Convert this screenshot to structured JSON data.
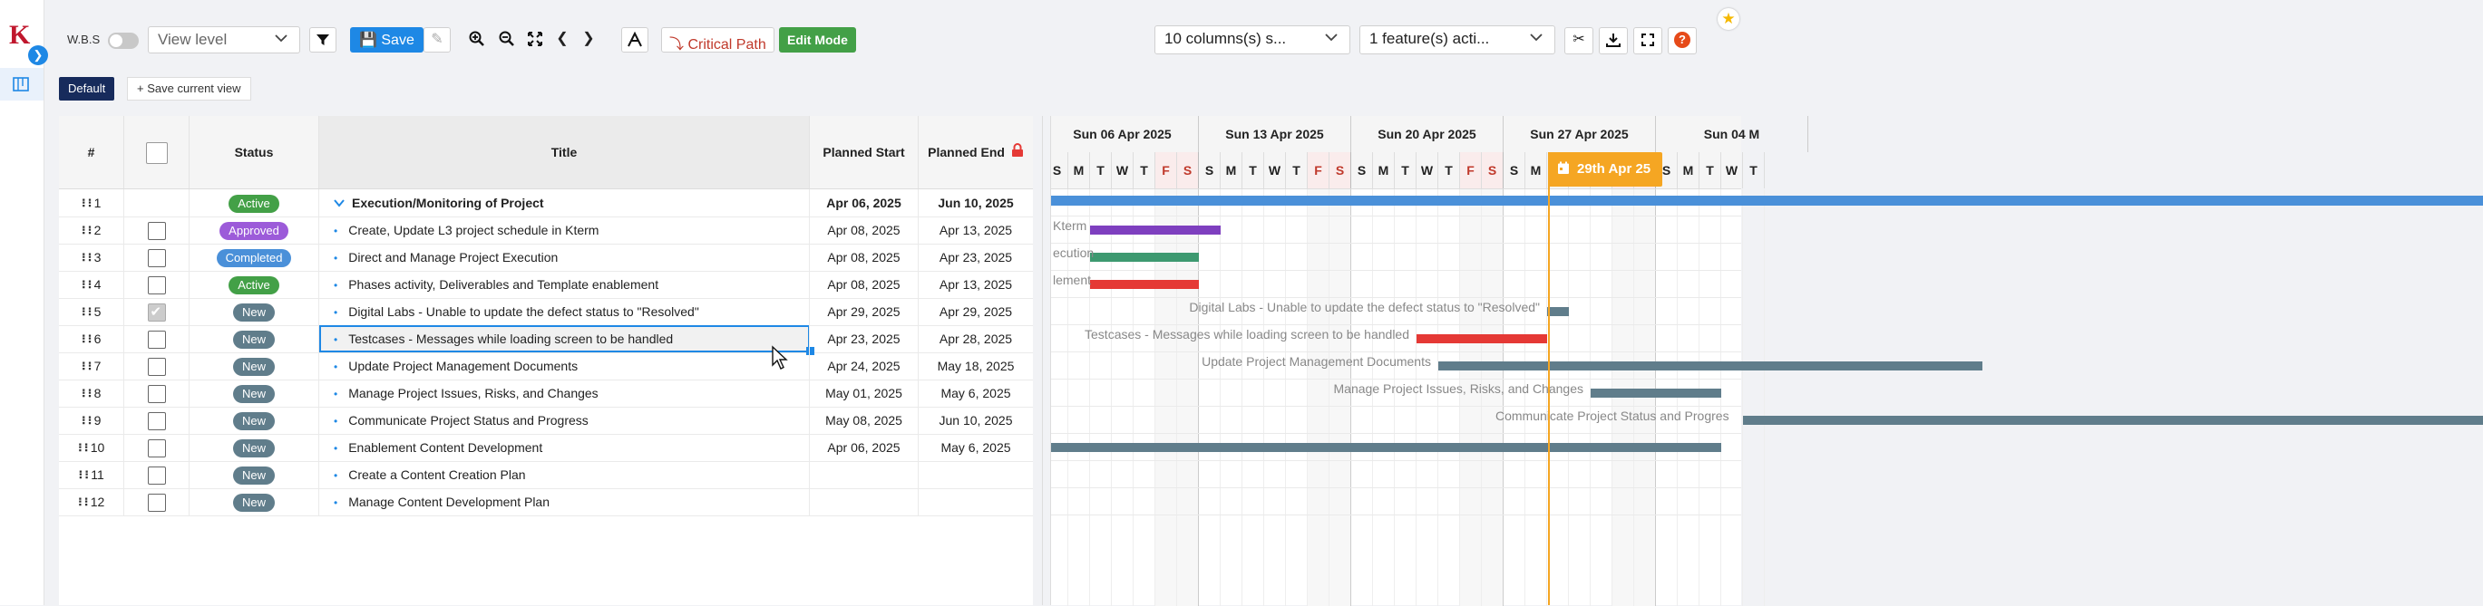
{
  "toolbar": {
    "wbs_label": "W.B.S",
    "view_level": "View level",
    "save_label": "Save",
    "critical_path_label": "Critical Path",
    "edit_mode_label": "Edit Mode",
    "columns_select": "10 columns(s) s...",
    "features_select": "1 feature(s) acti..."
  },
  "views": {
    "default_label": "Default",
    "save_current_label": "Save current view"
  },
  "columns": {
    "num": "#",
    "status": "Status",
    "title": "Title",
    "start": "Planned Start",
    "end": "Planned End"
  },
  "rows": [
    {
      "num": "1",
      "status": "Active",
      "title": "Execution/Monitoring of Project",
      "start": "Apr 06, 2025",
      "end": "Jun 10, 2025"
    },
    {
      "num": "2",
      "status": "Approved",
      "title": "Create, Update L3 project schedule in Kterm",
      "start": "Apr 08, 2025",
      "end": "Apr 13, 2025"
    },
    {
      "num": "3",
      "status": "Completed",
      "title": "Direct and Manage Project Execution",
      "start": "Apr 08, 2025",
      "end": "Apr 23, 2025"
    },
    {
      "num": "4",
      "status": "Active",
      "title": "Phases activity, Deliverables and Template enablement",
      "start": "Apr 08, 2025",
      "end": "Apr 13, 2025"
    },
    {
      "num": "5",
      "status": "New",
      "title": "Digital Labs - Unable to update the defect status to \"Resolved\"",
      "start": "Apr 29, 2025",
      "end": "Apr 29, 2025"
    },
    {
      "num": "6",
      "status": "New",
      "title": "Testcases - Messages while loading screen to be handled",
      "start": "Apr 23, 2025",
      "end": "Apr 28, 2025"
    },
    {
      "num": "7",
      "status": "New",
      "title": "Update Project Management Documents",
      "start": "Apr 24, 2025",
      "end": "May 18, 2025"
    },
    {
      "num": "8",
      "status": "New",
      "title": "Manage Project Issues, Risks, and Changes",
      "start": "May 01, 2025",
      "end": "May 6, 2025"
    },
    {
      "num": "9",
      "status": "New",
      "title": "Communicate Project Status and Progress",
      "start": "May 08, 2025",
      "end": "Jun 10, 2025"
    },
    {
      "num": "10",
      "status": "New",
      "title": "Enablement Content Development",
      "start": "Apr 06, 2025",
      "end": "May 6, 2025"
    },
    {
      "num": "11",
      "status": "New",
      "title": "Create a Content Creation Plan",
      "start": "",
      "end": ""
    },
    {
      "num": "12",
      "status": "New",
      "title": "Manage Content Development Plan",
      "start": "",
      "end": ""
    }
  ],
  "status_colors": {
    "Active": "#43a047",
    "Approved": "#9c5bd9",
    "Completed": "#4a90d9",
    "New": "#607d8b"
  },
  "gantt": {
    "weeks": [
      "Sun 06 Apr 2025",
      "Sun 13 Apr 2025",
      "Sun 20 Apr 2025",
      "Sun 27 Apr 2025",
      "Sun 04 M"
    ],
    "day_letters": [
      "S",
      "M",
      "T",
      "W",
      "T",
      "F",
      "S"
    ],
    "today_label": "29th Apr 25",
    "labels": {
      "r2": "Kterm",
      "r3": "ecution",
      "r4": "lement",
      "r5": "Digital Labs - Unable to update the defect status to \"Resolved\"",
      "r6": "Testcases - Messages while loading screen to be handled",
      "r7": "Update Project Management Documents",
      "r8": "Manage Project Issues, Risks, and Changes",
      "r9": "Communicate Project Status and Progres"
    }
  },
  "icons": [
    "star-icon",
    "chevron-right-icon",
    "board-icon",
    "filter-icon",
    "save-icon",
    "edit-icon",
    "zoom-in-icon",
    "zoom-out-icon",
    "fit-icon",
    "prev-icon",
    "next-icon",
    "auto-schedule-icon",
    "critical-path-icon",
    "scissors-icon",
    "download-icon",
    "fullscreen-icon",
    "help-icon",
    "lock-icon",
    "calendar-icon",
    "caret-down-icon"
  ]
}
